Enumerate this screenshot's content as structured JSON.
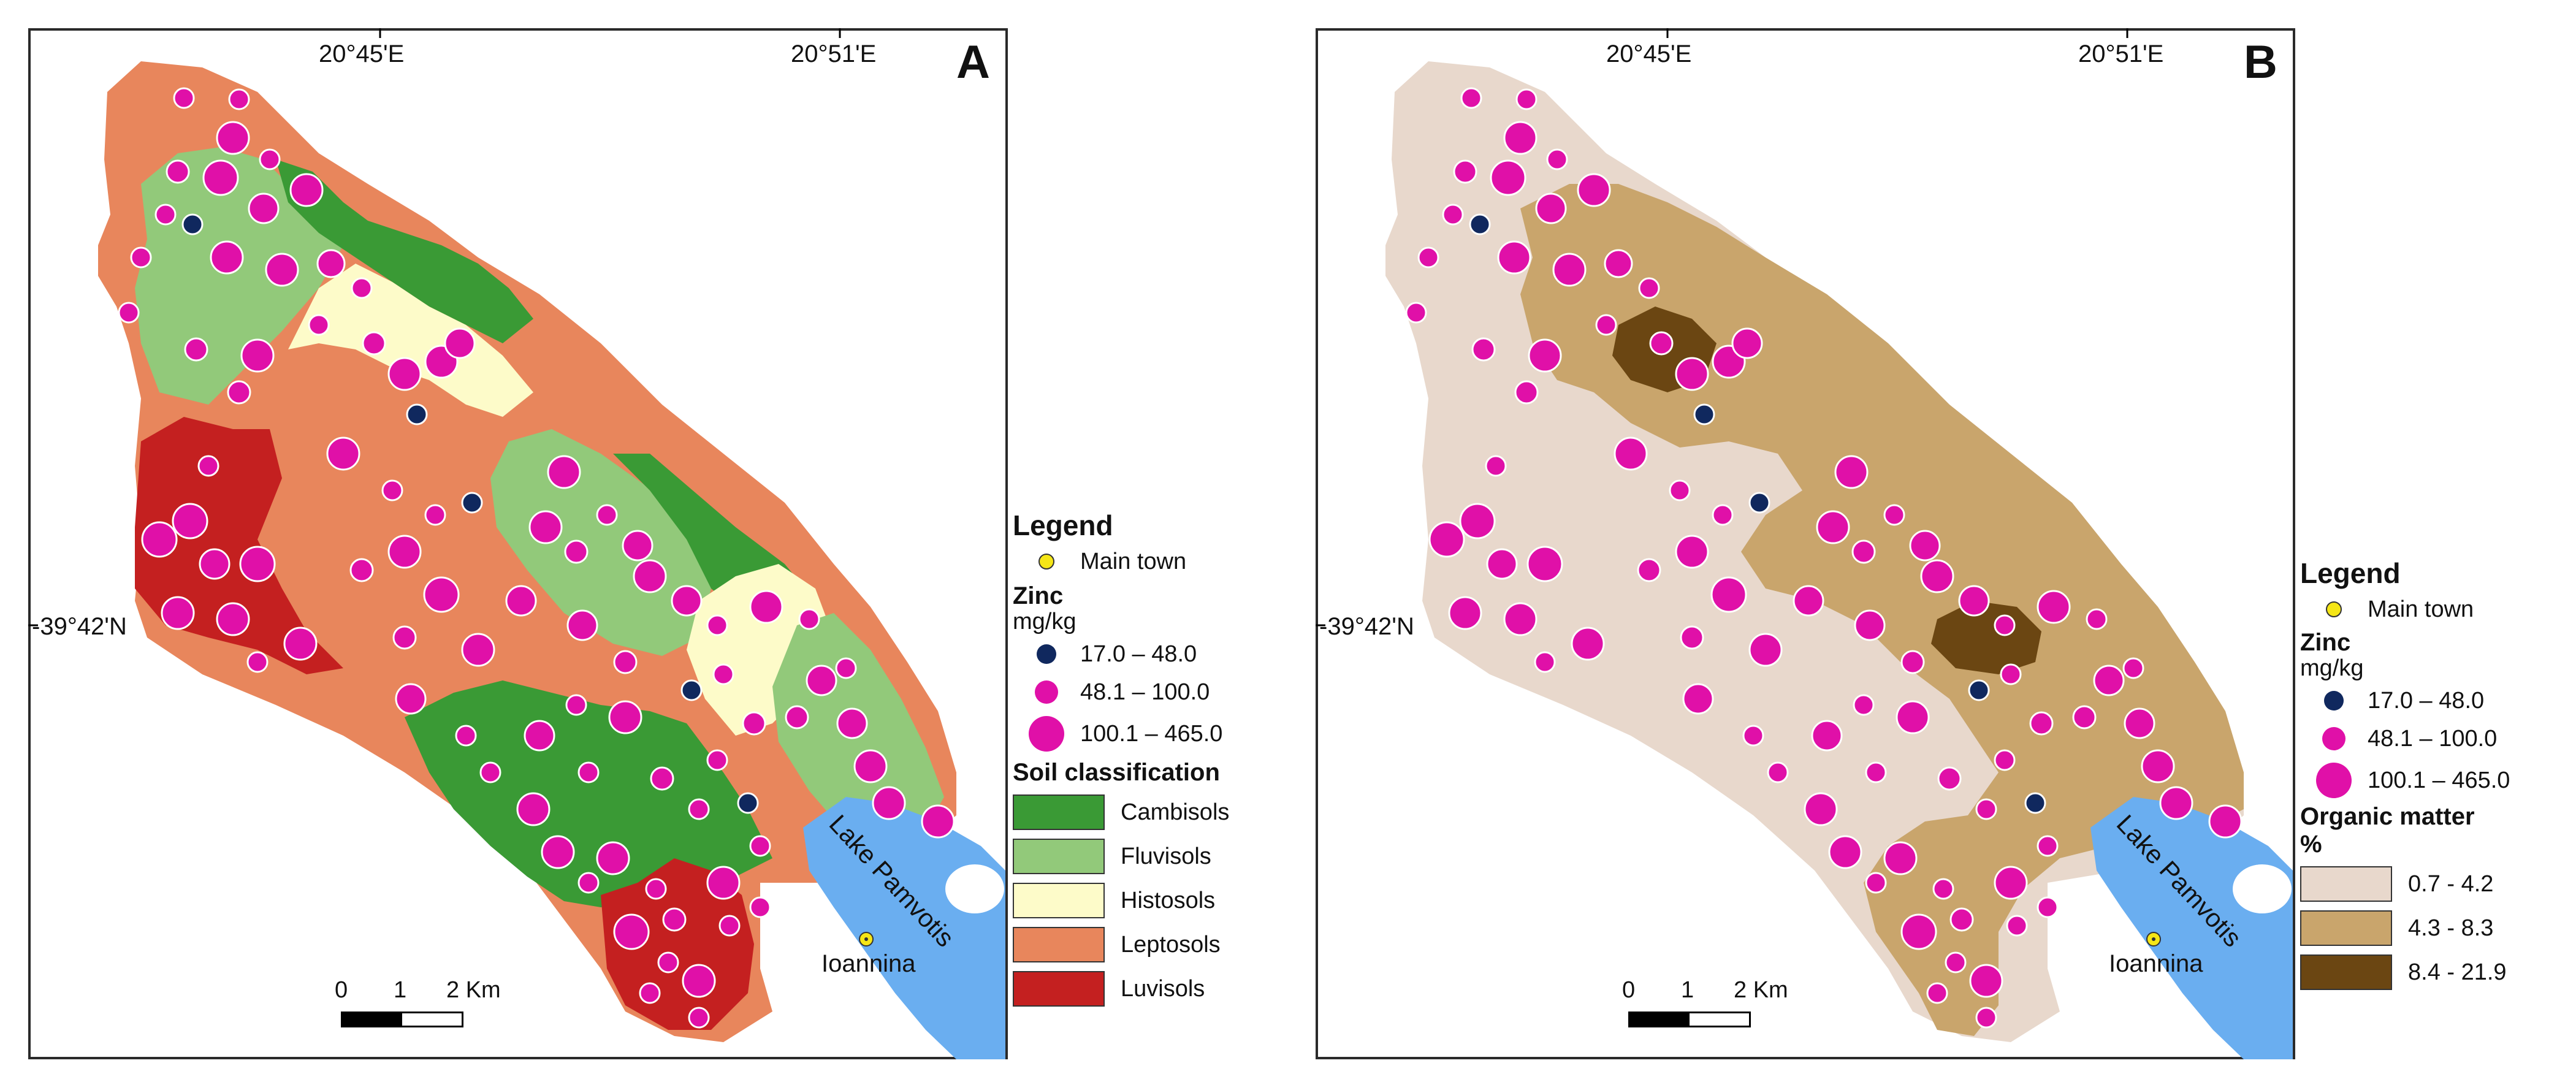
{
  "panel_a": {
    "letter": "A",
    "lon_label_1": "20°45'E",
    "lon_label_2": "20°51'E",
    "lat_label": "-39°42'N",
    "town": "Ioannina",
    "lake": "Lake Pamvotis",
    "scale": {
      "l0": "0",
      "l1": "1",
      "l2": "2 Km"
    }
  },
  "panel_b": {
    "letter": "B",
    "lon_label_1": "20°45'E",
    "lon_label_2": "20°51'E",
    "lat_label": "-39°42'N",
    "town": "Ioannina",
    "lake": "Lake Pamvotis",
    "scale": {
      "l0": "0",
      "l1": "1",
      "l2": "2 Km"
    }
  },
  "legend_a": {
    "title": "Legend",
    "town": "Main town",
    "zinc_title": "Zinc",
    "zinc_unit": "mg/kg",
    "zinc_classes": [
      "17.0 – 48.0",
      "48.1 – 100.0",
      "100.1 – 465.0"
    ],
    "soil_title": "Soil classification",
    "soil_classes": [
      "Cambisols",
      "Fluvisols",
      "Histosols",
      "Leptosols",
      "Luvisols"
    ]
  },
  "legend_b": {
    "title": "Legend",
    "town": "Main town",
    "zinc_title": "Zinc",
    "zinc_unit": "mg/kg",
    "zinc_classes": [
      "17.0 – 48.0",
      "48.1 – 100.0",
      "100.1 – 465.0"
    ],
    "om_title": "Organic matter",
    "om_unit": "%",
    "om_classes": [
      "0.7 - 4.2",
      "4.3 - 8.3",
      "8.4 - 21.9"
    ]
  },
  "colors": {
    "cambisols": "#3a9a35",
    "fluvisols": "#92c97a",
    "histosols": "#fdfbc9",
    "leptosols": "#e8865c",
    "luvisols": "#c42020",
    "om_low": "#e8d8cc",
    "om_mid": "#c9a56c",
    "om_high": "#6b4612",
    "zinc_low": "#10285e",
    "zinc_mid_high": "#e010a8",
    "lake": "#6aaef0",
    "town_marker": "#f5e616"
  }
}
